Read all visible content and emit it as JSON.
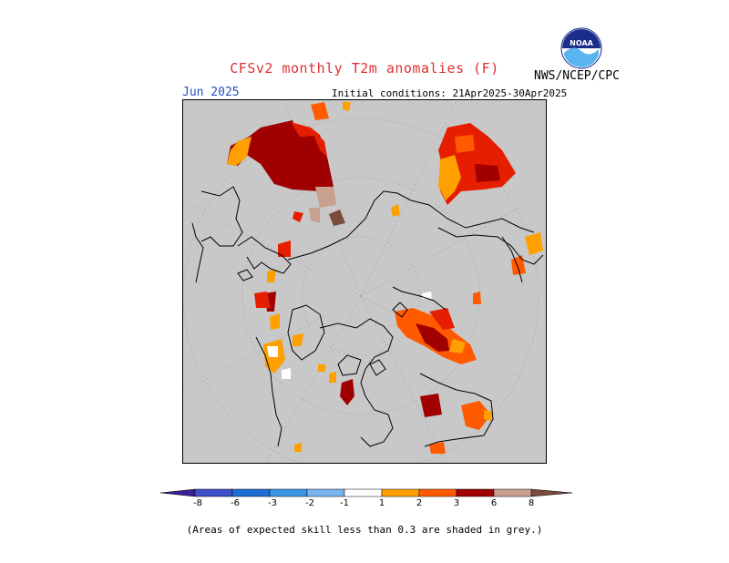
{
  "title": "CFSv2 monthly T2m anomalies (F)",
  "month": "Jun 2025",
  "initial_conditions": "Initial conditions: 21Apr2025-30Apr2025",
  "agency": "NWS/NCEP/CPC",
  "logo_text": "NOAA",
  "note": "(Areas of expected skill less than 0.3 are shaded in grey.)",
  "colors": {
    "skill_grey": "#c8c8c8",
    "neg8": "#3c1e96",
    "neg6": "#3c50c8",
    "neg3": "#1e6ed2",
    "neg2": "#3c96e6",
    "neg1": "#78b4f0",
    "neutral": "#ffffff",
    "pos1": "#ffa000",
    "pos2": "#ff5a00",
    "pos3": "#e61e00",
    "pos6": "#a00000",
    "pos8": "#c8a090",
    "pos_max": "#7a4a3a"
  },
  "colorbar": {
    "ticks": [
      "-8",
      "-6",
      "-3",
      "-2",
      "-1",
      "1",
      "2",
      "3",
      "6",
      "8"
    ]
  }
}
